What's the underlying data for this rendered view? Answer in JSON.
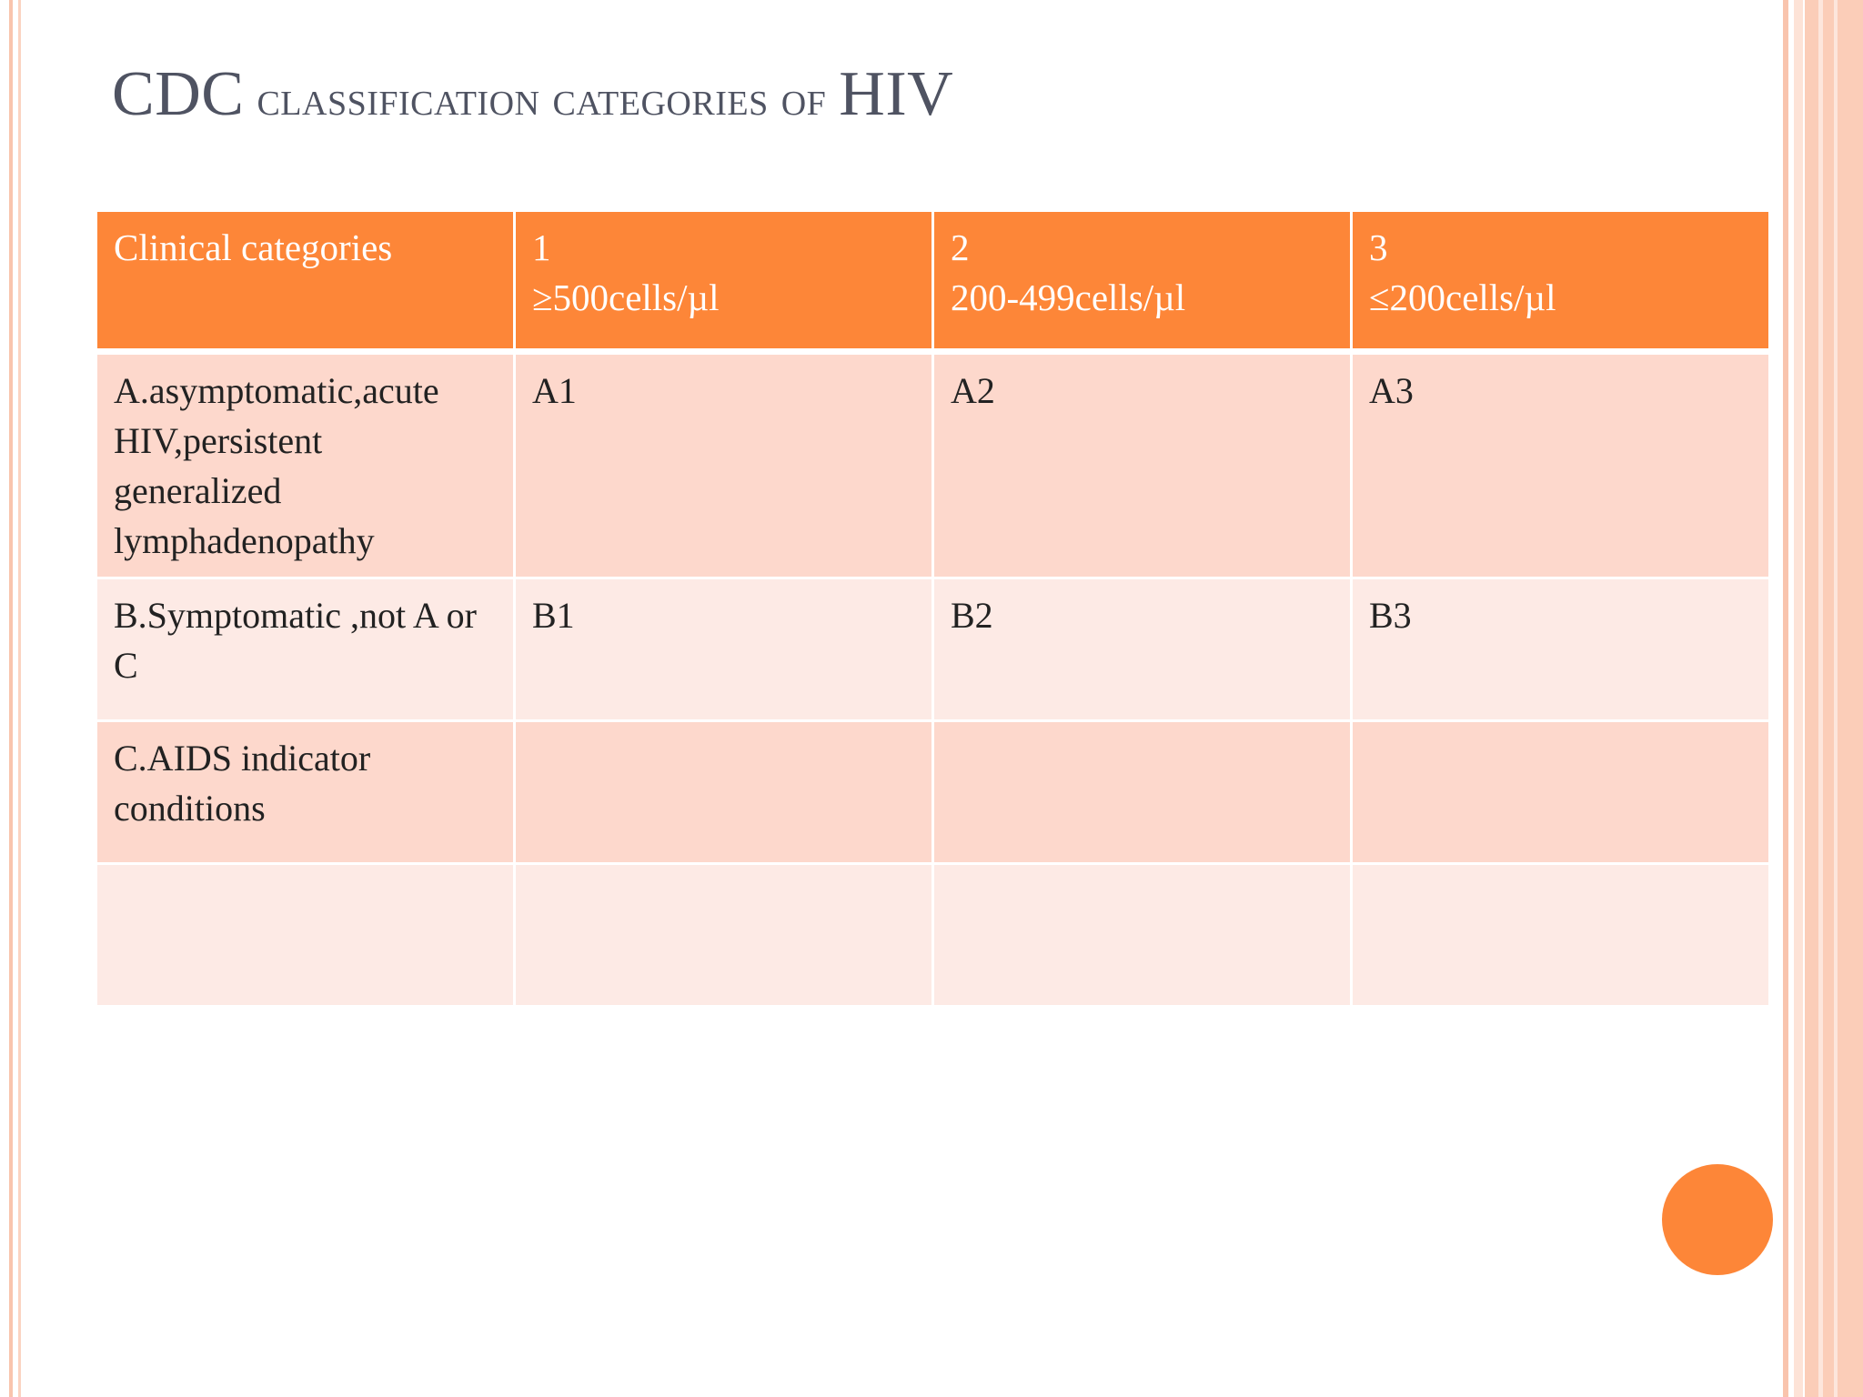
{
  "slide": {
    "title_parts": [
      "CDC",
      " classification categories of ",
      "HIV"
    ]
  },
  "table": {
    "headers": [
      {
        "lines": [
          "Clinical categories"
        ]
      },
      {
        "lines": [
          "1",
          "≥500cells/µl"
        ]
      },
      {
        "lines": [
          "2",
          "200-499cells/µl"
        ]
      },
      {
        "lines": [
          "3",
          "≤200cells/µl"
        ]
      }
    ],
    "rows": [
      {
        "cells": [
          "A.asymptomatic,acute HIV,persistent generalized lymphadenopathy",
          "A1",
          "A2",
          "A3"
        ]
      },
      {
        "cells": [
          "B.Symptomatic ,not A or C",
          "B1",
          "B2",
          "B3"
        ]
      },
      {
        "cells": [
          "C.AIDS indicator conditions",
          "",
          "",
          ""
        ]
      },
      {
        "cells": [
          "",
          "",
          "",
          ""
        ]
      }
    ]
  },
  "colors": {
    "accent": "#fd8638",
    "row_dark": "#fdd8cc",
    "row_light": "#fdeae5",
    "title_text": "#4f5362",
    "border_stripe": "#fbcdb8"
  },
  "decorations": {
    "corner_dot": "orange-circle"
  }
}
